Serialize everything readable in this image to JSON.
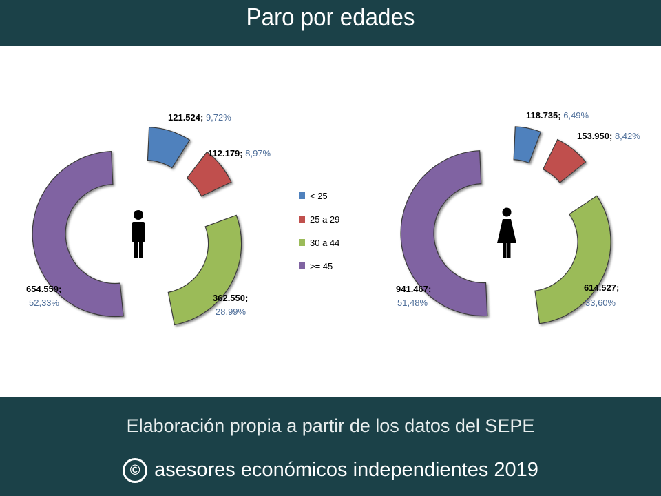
{
  "header": {
    "title": "Paro por edades"
  },
  "footer": {
    "source": "Elaboración propia a partir de los datos del SEPE",
    "copyright_symbol": "©",
    "copyright": "asesores económicos independientes 2019"
  },
  "chart_data": {
    "type": "pie",
    "categories": [
      "< 25",
      "25 a 29",
      "30 a 44",
      ">= 45"
    ],
    "colors": [
      "#4f81bd",
      "#c0504d",
      "#9bbb59",
      "#8064a2"
    ],
    "legend_position": "center",
    "charts": [
      {
        "icon": "male-icon",
        "values_label": [
          "121.524;",
          "112.179;",
          "362.550;",
          "654.559;"
        ],
        "percent_label": [
          "9,72%",
          "8,97%",
          "28,99%",
          "52,33%"
        ],
        "values": [
          121524,
          112179,
          362550,
          654559
        ],
        "percent": [
          9.72,
          8.97,
          28.99,
          52.33
        ]
      },
      {
        "icon": "female-icon",
        "values_label": [
          "118.735;",
          "153.950;",
          "614.527;",
          "941.467;"
        ],
        "percent_label": [
          "6,49%",
          "8,42%",
          "33,60%",
          "51,48%"
        ],
        "values": [
          118735,
          153950,
          614527,
          941467
        ],
        "percent": [
          6.49,
          8.42,
          33.6,
          51.48
        ]
      }
    ]
  }
}
